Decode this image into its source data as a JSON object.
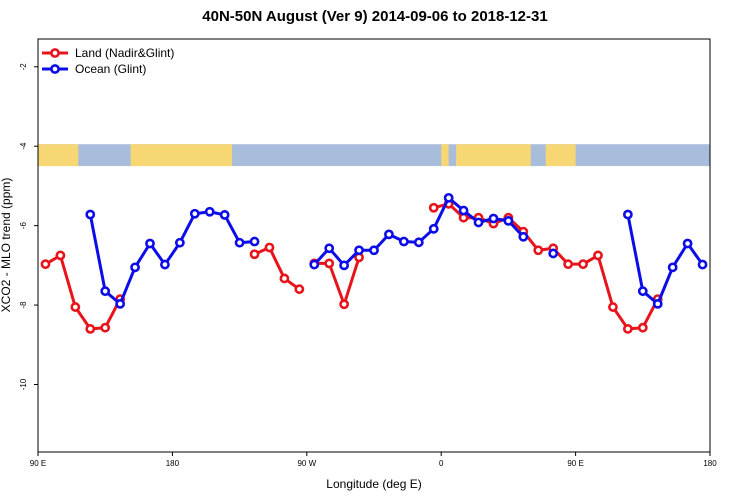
{
  "chart_data": {
    "type": "line",
    "title": "40N-50N August (Ver 9)   2014-09-06 to 2018-12-31",
    "xlabel": "Longitude (deg E)",
    "ylabel": "XCO2 - MLO trend (ppm)",
    "xlim": [
      90,
      540
    ],
    "ylim": [
      -11.7,
      -1.3
    ],
    "x_ticks": [
      {
        "value": 90,
        "label": "90 E"
      },
      {
        "value": 180,
        "label": "180"
      },
      {
        "value": 270,
        "label": "90 W"
      },
      {
        "value": 360,
        "label": "0"
      },
      {
        "value": 450,
        "label": "90 E"
      },
      {
        "value": 540,
        "label": "180"
      }
    ],
    "y_ticks": [
      -2,
      -4,
      -6,
      -8,
      -10
    ],
    "map_strip": {
      "y_top": -3.95,
      "y_bottom": -4.5,
      "land_color": "#F7D774",
      "ocean_color": "#A8BCDC"
    },
    "legend": {
      "position": "top-left"
    },
    "series": [
      {
        "name": "Land (Nadir&Glint)",
        "color": "#E8141B",
        "segments": [
          [
            [
              95,
              -6.97
            ],
            [
              105,
              -6.75
            ],
            [
              115,
              -8.05
            ],
            [
              125,
              -8.6
            ],
            [
              135,
              -8.57
            ],
            [
              145,
              -7.85
            ]
          ],
          [
            [
              235,
              -6.72
            ],
            [
              245,
              -6.55
            ],
            [
              255,
              -7.33
            ],
            [
              265,
              -7.6
            ]
          ],
          [
            [
              275,
              -6.95
            ],
            [
              285,
              -6.95
            ],
            [
              295,
              -7.98
            ],
            [
              305,
              -6.8
            ]
          ],
          [
            [
              355,
              -5.55
            ],
            [
              365,
              -5.45
            ],
            [
              375,
              -5.8
            ],
            [
              385,
              -5.8
            ],
            [
              395,
              -5.95
            ],
            [
              405,
              -5.8
            ],
            [
              415,
              -6.15
            ],
            [
              425,
              -6.62
            ],
            [
              435,
              -6.57
            ],
            [
              445,
              -6.97
            ],
            [
              455,
              -6.97
            ],
            [
              465,
              -6.75
            ],
            [
              475,
              -8.05
            ],
            [
              485,
              -8.6
            ],
            [
              495,
              -8.57
            ],
            [
              505,
              -7.85
            ]
          ]
        ]
      },
      {
        "name": "Ocean (Glint)",
        "color": "#0C0CE8",
        "segments": [
          [
            [
              125,
              -5.72
            ],
            [
              135,
              -7.65
            ],
            [
              145,
              -7.97
            ],
            [
              155,
              -7.05
            ],
            [
              165,
              -6.45
            ],
            [
              175,
              -6.98
            ],
            [
              185,
              -6.43
            ],
            [
              195,
              -5.7
            ],
            [
              205,
              -5.65
            ],
            [
              215,
              -5.73
            ],
            [
              225,
              -6.43
            ],
            [
              235,
              -6.4
            ]
          ],
          [
            [
              275,
              -6.98
            ],
            [
              285,
              -6.57
            ],
            [
              295,
              -7.0
            ],
            [
              305,
              -6.62
            ],
            [
              315,
              -6.62
            ],
            [
              325,
              -6.22
            ],
            [
              335,
              -6.4
            ],
            [
              345,
              -6.42
            ],
            [
              355,
              -6.08
            ],
            [
              365,
              -5.3
            ],
            [
              375,
              -5.62
            ],
            [
              385,
              -5.92
            ],
            [
              395,
              -5.82
            ],
            [
              405,
              -5.88
            ],
            [
              415,
              -6.28
            ],
            [
              425,
              null
            ],
            [
              435,
              -6.7
            ]
          ],
          [
            [
              485,
              -5.72
            ],
            [
              495,
              -7.65
            ],
            [
              505,
              -7.97
            ],
            [
              515,
              -7.05
            ],
            [
              525,
              -6.45
            ],
            [
              535,
              -6.98
            ]
          ]
        ]
      }
    ]
  }
}
